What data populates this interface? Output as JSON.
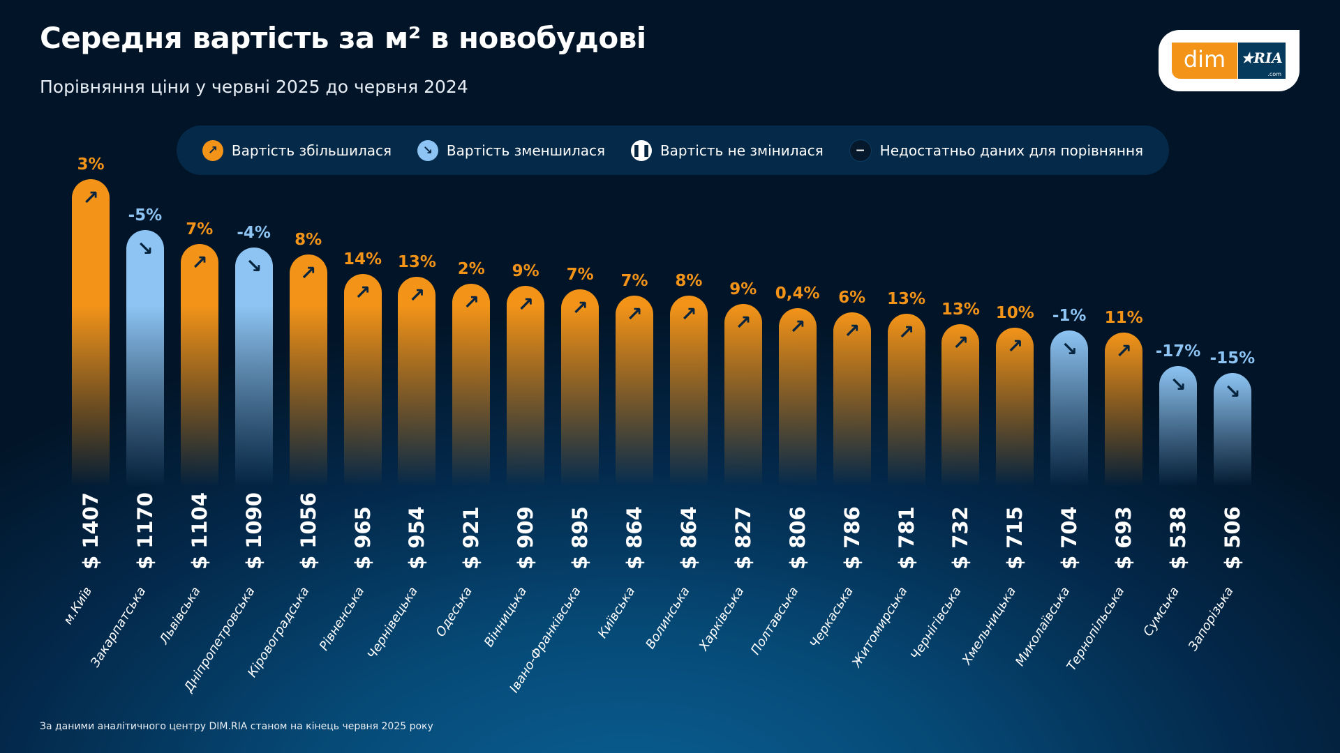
{
  "title": "Середня вартість за м² в новобудові",
  "subtitle": "Порівняння ціни у червні 2025 до червня 2024",
  "logo": {
    "left": "dim",
    "right": "RIA",
    "suffix": ".com"
  },
  "legend": [
    {
      "label": "Вартість збільшилася",
      "icon": "arrow-up-right-icon",
      "color": "#f39419"
    },
    {
      "label": "Вартість зменшилася",
      "icon": "arrow-down-right-icon",
      "color": "#8dc4f3"
    },
    {
      "label": "Вартість не змінилася",
      "icon": "pause-icon",
      "color": "#ffffff"
    },
    {
      "label": "Недостатньо даних для порівняння",
      "icon": "minus-icon",
      "color": "#05182c"
    }
  ],
  "footer": "За даними аналітичного центру DIM.RIA станом на кінець червня 2025 року",
  "colors": {
    "increase": "#f39419",
    "decrease": "#8dc4f3",
    "background": "#03284a"
  },
  "chart_data": {
    "type": "bar",
    "value_prefix": "$ ",
    "categories": [
      "м.Київ",
      "Закарпатська",
      "Львівська",
      "Дніпропетровська",
      "Кіровоградська",
      "Рівненська",
      "Чернівецька",
      "Одеська",
      "Вінницька",
      "Івано-Франківська",
      "Київська",
      "Волинська",
      "Харківська",
      "Полтавська",
      "Черкаська",
      "Житомирська",
      "Чернігівська",
      "Хмельницька",
      "Миколаївська",
      "Тернопільська",
      "Сумська",
      "Запорізька"
    ],
    "values": [
      1407,
      1170,
      1104,
      1090,
      1056,
      965,
      954,
      921,
      909,
      895,
      864,
      864,
      827,
      806,
      786,
      781,
      732,
      715,
      704,
      693,
      538,
      506
    ],
    "change_labels": [
      "3%",
      "-5%",
      "7%",
      "-4%",
      "8%",
      "14%",
      "13%",
      "2%",
      "9%",
      "7%",
      "7%",
      "8%",
      "9%",
      "0,4%",
      "6%",
      "13%",
      "13%",
      "10%",
      "-1%",
      "11%",
      "-17%",
      "-15%"
    ],
    "change_direction": [
      "up",
      "down",
      "up",
      "down",
      "up",
      "up",
      "up",
      "up",
      "up",
      "up",
      "up",
      "up",
      "up",
      "up",
      "up",
      "up",
      "up",
      "up",
      "down",
      "up",
      "down",
      "down"
    ],
    "grid": false,
    "legend_position": "top"
  }
}
